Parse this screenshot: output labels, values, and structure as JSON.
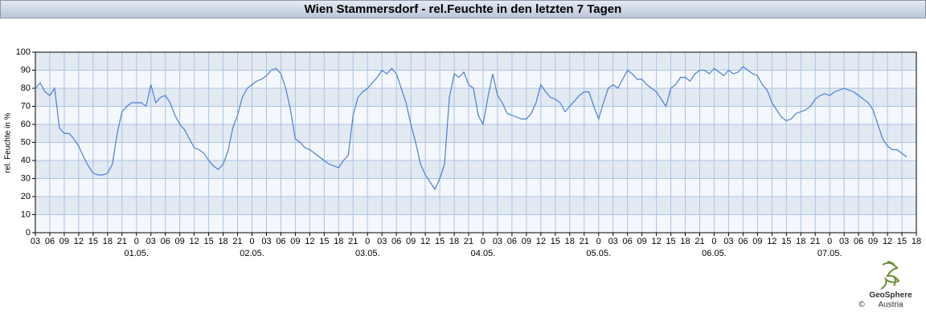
{
  "chart_data": {
    "type": "line",
    "title": "Wien Stammersdorf - rel.Feuchte in den letzten 7 Tagen",
    "y_label": "rel. Feuchte in %",
    "x": [
      0,
      1,
      2,
      3,
      4,
      5,
      6,
      7,
      8,
      9,
      10,
      11,
      12,
      13,
      14,
      15,
      16,
      17,
      18,
      19,
      20,
      21,
      22,
      23,
      24,
      25,
      26,
      27,
      28,
      29,
      30,
      31,
      32,
      33,
      34,
      35,
      36,
      37,
      38,
      39,
      40,
      41,
      42,
      43,
      44,
      45,
      46,
      47,
      48,
      49,
      50,
      51,
      52,
      53,
      54,
      55,
      56,
      57,
      58,
      59,
      60,
      61,
      62,
      63,
      64,
      65,
      66,
      67,
      68,
      69,
      70,
      71,
      72,
      73,
      74,
      75,
      76,
      77,
      78,
      79,
      80,
      81,
      82,
      83,
      84,
      85,
      86,
      87,
      88,
      89,
      90,
      91,
      92,
      93,
      94,
      95,
      96,
      97,
      98,
      99,
      100,
      101,
      102,
      103,
      104,
      105,
      106,
      107,
      108,
      109,
      110,
      111,
      112,
      113,
      114,
      115,
      116,
      117,
      118,
      119,
      120,
      121,
      122,
      123,
      124,
      125,
      126,
      127,
      128,
      129,
      130,
      131,
      132,
      133,
      134,
      135,
      136,
      137,
      138,
      139,
      140,
      141,
      142,
      143,
      144,
      145,
      146,
      147,
      148,
      149,
      150,
      151,
      152,
      153,
      154,
      155,
      156,
      157,
      158,
      159,
      160,
      161,
      162,
      163,
      164,
      165,
      166,
      167,
      168,
      169,
      170,
      171,
      172,
      173,
      174,
      175,
      176,
      177,
      178,
      179,
      180,
      181
    ],
    "series": [
      {
        "color": "#4a7fd6",
        "values": [
          80,
          83,
          78,
          76,
          80,
          58,
          55,
          55,
          52,
          48,
          42,
          37,
          33,
          32,
          32,
          33,
          38,
          55,
          67,
          70,
          72,
          72,
          72,
          70,
          82,
          72,
          75,
          76,
          72,
          65,
          60,
          57,
          52,
          47,
          46,
          44,
          40,
          37,
          35,
          38,
          45,
          58,
          65,
          75,
          80,
          82,
          84,
          85,
          87,
          90,
          91,
          88,
          80,
          68,
          52,
          50,
          47,
          46,
          44,
          42,
          40,
          38,
          37,
          36,
          40,
          43,
          65,
          75,
          78,
          80,
          83,
          86,
          90,
          88,
          91,
          88,
          80,
          72,
          60,
          50,
          38,
          32,
          28,
          24,
          30,
          38,
          75,
          88,
          86,
          89,
          82,
          80,
          65,
          60,
          75,
          88,
          76,
          72,
          66,
          65,
          64,
          63,
          63,
          66,
          72,
          82,
          78,
          75,
          74,
          72,
          67,
          70,
          73,
          76,
          78,
          78,
          70,
          63,
          72,
          80,
          82,
          80,
          85,
          90,
          88,
          85,
          85,
          82,
          80,
          78,
          74,
          70,
          80,
          82,
          86,
          86,
          84,
          88,
          90,
          90,
          88,
          91,
          89,
          87,
          90,
          88,
          89,
          92,
          90,
          88,
          87,
          82,
          79,
          72,
          68,
          64,
          62,
          63,
          66,
          67,
          68,
          70,
          74,
          76,
          77,
          76,
          78,
          79,
          80,
          79,
          78,
          76,
          74,
          72,
          68,
          60,
          52,
          48,
          46,
          46,
          44,
          42
        ]
      }
    ],
    "xlim": [
      0,
      183
    ],
    "xticks": [
      {
        "value": 0,
        "label": "03"
      },
      {
        "value": 3,
        "label": "06"
      },
      {
        "value": 6,
        "label": "09"
      },
      {
        "value": 9,
        "label": "12"
      },
      {
        "value": 12,
        "label": "15"
      },
      {
        "value": 15,
        "label": "18"
      },
      {
        "value": 18,
        "label": "21"
      },
      {
        "value": 21,
        "label": "0"
      },
      {
        "value": 24,
        "label": "03"
      },
      {
        "value": 27,
        "label": "06"
      },
      {
        "value": 30,
        "label": "09"
      },
      {
        "value": 33,
        "label": "12"
      },
      {
        "value": 36,
        "label": "15"
      },
      {
        "value": 39,
        "label": "18"
      },
      {
        "value": 42,
        "label": "21"
      },
      {
        "value": 45,
        "label": "0"
      },
      {
        "value": 48,
        "label": "03"
      },
      {
        "value": 51,
        "label": "06"
      },
      {
        "value": 54,
        "label": "09"
      },
      {
        "value": 57,
        "label": "12"
      },
      {
        "value": 60,
        "label": "15"
      },
      {
        "value": 63,
        "label": "18"
      },
      {
        "value": 66,
        "label": "21"
      },
      {
        "value": 69,
        "label": "0"
      },
      {
        "value": 72,
        "label": "03"
      },
      {
        "value": 75,
        "label": "06"
      },
      {
        "value": 78,
        "label": "09"
      },
      {
        "value": 81,
        "label": "12"
      },
      {
        "value": 84,
        "label": "15"
      },
      {
        "value": 87,
        "label": "18"
      },
      {
        "value": 90,
        "label": "21"
      },
      {
        "value": 93,
        "label": "0"
      },
      {
        "value": 96,
        "label": "03"
      },
      {
        "value": 99,
        "label": "06"
      },
      {
        "value": 102,
        "label": "09"
      },
      {
        "value": 105,
        "label": "12"
      },
      {
        "value": 108,
        "label": "15"
      },
      {
        "value": 111,
        "label": "18"
      },
      {
        "value": 114,
        "label": "21"
      },
      {
        "value": 117,
        "label": "0"
      },
      {
        "value": 120,
        "label": "03"
      },
      {
        "value": 123,
        "label": "06"
      },
      {
        "value": 126,
        "label": "09"
      },
      {
        "value": 129,
        "label": "12"
      },
      {
        "value": 132,
        "label": "15"
      },
      {
        "value": 135,
        "label": "18"
      },
      {
        "value": 138,
        "label": "21"
      },
      {
        "value": 141,
        "label": "0"
      },
      {
        "value": 144,
        "label": "03"
      },
      {
        "value": 147,
        "label": "06"
      },
      {
        "value": 150,
        "label": "09"
      },
      {
        "value": 153,
        "label": "12"
      },
      {
        "value": 156,
        "label": "15"
      },
      {
        "value": 159,
        "label": "18"
      },
      {
        "value": 162,
        "label": "21"
      },
      {
        "value": 165,
        "label": "0"
      },
      {
        "value": 168,
        "label": "03"
      },
      {
        "value": 171,
        "label": "06"
      },
      {
        "value": 174,
        "label": "09"
      },
      {
        "value": 177,
        "label": "12"
      },
      {
        "value": 180,
        "label": "15"
      },
      {
        "value": 183,
        "label": "18"
      }
    ],
    "date_ticks": [
      {
        "value": 21,
        "label": "01.05."
      },
      {
        "value": 45,
        "label": "02.05."
      },
      {
        "value": 69,
        "label": "03.05."
      },
      {
        "value": 93,
        "label": "04.05."
      },
      {
        "value": 117,
        "label": "05.05."
      },
      {
        "value": 141,
        "label": "06.05."
      },
      {
        "value": 165,
        "label": "07.05."
      }
    ],
    "ylim": [
      0,
      100
    ],
    "yticks": [
      0,
      10,
      20,
      30,
      40,
      50,
      60,
      70,
      80,
      90,
      100
    ],
    "grid": true
  },
  "logo": {
    "name": "GeoSphere",
    "sub": "Austria",
    "copyright": "©"
  }
}
